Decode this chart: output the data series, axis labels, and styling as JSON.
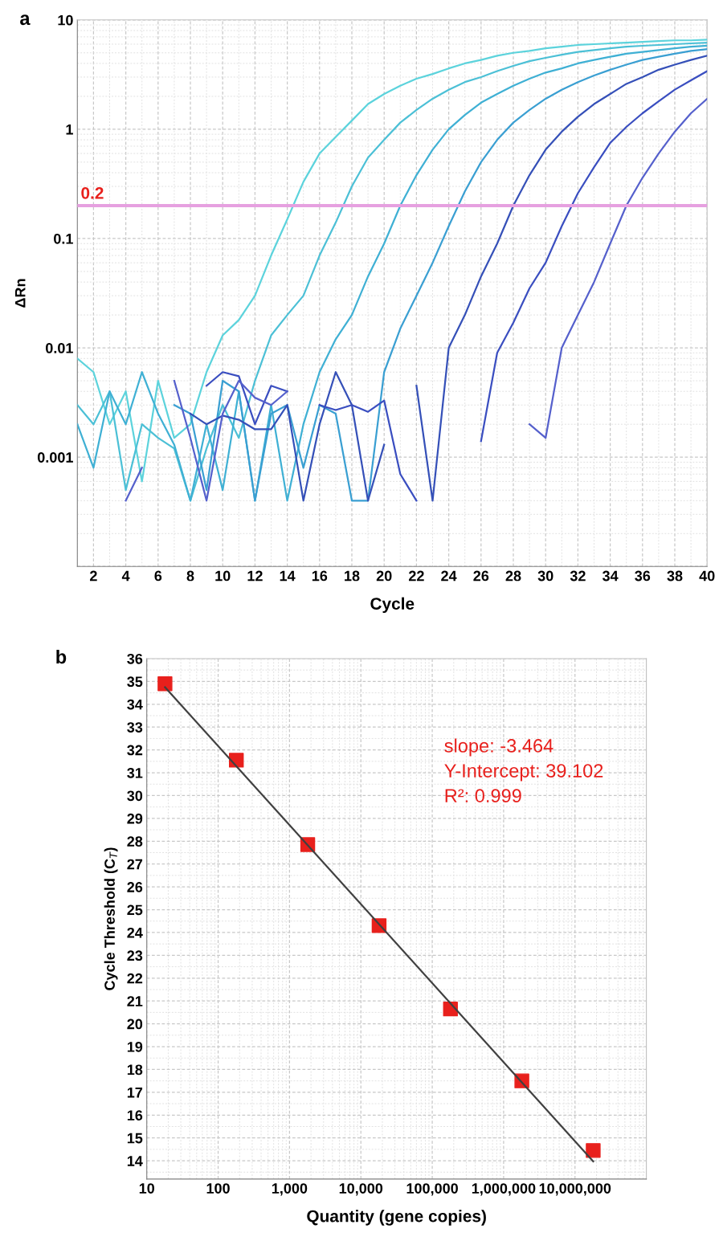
{
  "chart_data": [
    {
      "type": "line",
      "title": "a",
      "xlabel": "Cycle",
      "ylabel": "ΔRn",
      "log": "y",
      "grid": true,
      "legend": false,
      "marker": "none",
      "line_style": "solid",
      "x": [
        1,
        2,
        3,
        4,
        5,
        6,
        7,
        8,
        9,
        10,
        11,
        12,
        13,
        14,
        15,
        16,
        17,
        18,
        19,
        20,
        21,
        22,
        23,
        24,
        25,
        26,
        27,
        28,
        29,
        30,
        31,
        32,
        33,
        34,
        35,
        36,
        37,
        38,
        39,
        40
      ],
      "xlim": [
        1,
        40
      ],
      "xticks": [
        2,
        4,
        6,
        8,
        10,
        12,
        14,
        16,
        18,
        20,
        22,
        24,
        26,
        28,
        30,
        32,
        34,
        36,
        38,
        40
      ],
      "ylim": [
        0.0001,
        10
      ],
      "yticks": [
        {
          "value": 0.0001,
          "label": null
        },
        0.001,
        0.01,
        0.1,
        1,
        10
      ],
      "ref_lines": [
        {
          "axis": "y",
          "value": 0.2,
          "label": "0.2",
          "color": "#e6a0e0"
        }
      ],
      "series": [
        {
          "color": "#5cd3dc",
          "values": [
            0.008,
            0.006,
            0.002,
            0.004,
            0.0006,
            0.005,
            0.0015,
            0.002,
            0.006,
            0.013,
            0.018,
            0.03,
            0.07,
            0.15,
            0.33,
            0.6,
            0.85,
            1.2,
            1.7,
            2.1,
            2.5,
            2.9,
            3.2,
            3.6,
            4.0,
            4.3,
            4.7,
            5.0,
            5.2,
            5.5,
            5.7,
            5.9,
            6.0,
            6.1,
            6.2,
            6.3,
            6.4,
            6.5,
            6.5,
            6.6
          ]
        },
        {
          "color": "#4cc0d6",
          "values": [
            0.003,
            0.002,
            0.004,
            0.0005,
            0.002,
            0.0015,
            0.0012,
            0.0004,
            0.0012,
            0.003,
            0.0015,
            0.005,
            0.013,
            0.02,
            0.03,
            0.07,
            0.14,
            0.3,
            0.55,
            0.8,
            1.15,
            1.5,
            1.9,
            2.3,
            2.7,
            3.0,
            3.4,
            3.8,
            4.2,
            4.5,
            4.8,
            5.1,
            5.3,
            5.5,
            5.7,
            5.8,
            5.9,
            6.0,
            6.1,
            6.2
          ]
        },
        {
          "color": "#3fb0d4",
          "values": [
            0.002,
            0.0008,
            0.004,
            0.002,
            0.006,
            0.0025,
            0.0013,
            0.0004,
            0.002,
            0.0005,
            0.004,
            0.0004,
            0.003,
            0.0004,
            0.002,
            0.006,
            0.012,
            0.02,
            0.045,
            0.09,
            0.2,
            0.38,
            0.65,
            1.0,
            1.35,
            1.75,
            2.1,
            2.5,
            2.9,
            3.3,
            3.6,
            4.0,
            4.3,
            4.6,
            4.9,
            5.1,
            5.3,
            5.5,
            5.7,
            5.8
          ]
        },
        {
          "color": "#3a9fd2",
          "values": [
            null,
            null,
            null,
            null,
            null,
            null,
            0.003,
            0.0025,
            0.0005,
            0.005,
            0.004,
            0.0004,
            0.0025,
            0.003,
            0.0008,
            0.003,
            0.0025,
            0.0004,
            0.0004,
            0.006,
            0.015,
            0.03,
            0.06,
            0.13,
            0.27,
            0.5,
            0.8,
            1.15,
            1.5,
            1.9,
            2.3,
            2.7,
            3.1,
            3.5,
            3.9,
            4.3,
            4.6,
            4.9,
            5.2,
            5.4
          ]
        },
        {
          "color": "#3550b8",
          "values": [
            null,
            null,
            null,
            null,
            null,
            null,
            null,
            0.0025,
            0.002,
            0.0024,
            0.0022,
            0.0018,
            0.0018,
            0.003,
            0.0004,
            0.002,
            0.006,
            0.003,
            0.0004,
            0.0013,
            null,
            0.0045,
            0.0004,
            0.01,
            0.02,
            0.045,
            0.09,
            0.2,
            0.38,
            0.65,
            0.95,
            1.3,
            1.7,
            2.1,
            2.6,
            3.0,
            3.5,
            3.9,
            4.3,
            4.7
          ]
        },
        {
          "color": "#3a4ec0",
          "values": [
            null,
            null,
            null,
            null,
            null,
            null,
            null,
            null,
            0.0045,
            0.006,
            0.0055,
            0.002,
            0.0045,
            0.004,
            null,
            0.003,
            0.0027,
            0.003,
            0.0026,
            0.0033,
            0.0007,
            0.0004,
            null,
            null,
            null,
            0.0014,
            0.009,
            0.017,
            0.035,
            0.06,
            0.13,
            0.26,
            0.45,
            0.75,
            1.05,
            1.4,
            1.8,
            2.3,
            2.8,
            3.4
          ]
        },
        {
          "color": "#5560cc",
          "values": [
            null,
            null,
            null,
            0.0004,
            0.0008,
            null,
            0.005,
            0.0015,
            0.0004,
            0.0025,
            0.005,
            0.0035,
            0.003,
            0.004,
            null,
            null,
            null,
            null,
            null,
            null,
            null,
            null,
            null,
            null,
            null,
            null,
            null,
            null,
            0.002,
            0.0015,
            0.01,
            0.02,
            0.04,
            0.09,
            0.2,
            0.36,
            0.6,
            0.95,
            1.4,
            1.9
          ]
        }
      ]
    },
    {
      "type": "scatter",
      "title": "b",
      "xlabel": "Quantity (gene copies)",
      "ylabel": "Cycle Threshold (C$_{T}$)",
      "log": "x",
      "grid": true,
      "legend": false,
      "xlim": [
        10,
        100000000
      ],
      "xticks": [
        {
          "value": 10,
          "label": "10"
        },
        {
          "value": 100,
          "label": "100"
        },
        {
          "value": 1000,
          "label": "1,000"
        },
        {
          "value": 10000,
          "label": "10,000"
        },
        {
          "value": 100000,
          "label": "100,000"
        },
        {
          "value": 1000000,
          "label": "1,000,000"
        },
        {
          "value": 10000000,
          "label": "10,000,000"
        },
        {
          "value": 100000000,
          "label": null
        }
      ],
      "ylim": [
        13.2,
        36
      ],
      "yticks": [
        14,
        15,
        16,
        17,
        18,
        19,
        20,
        21,
        22,
        23,
        24,
        25,
        26,
        27,
        28,
        29,
        30,
        31,
        32,
        33,
        34,
        35,
        36
      ],
      "annotations": [
        "slope: -3.464",
        "Y-Intercept: 39.102",
        "R²: 0.999"
      ],
      "series": [
        {
          "type": "scatter",
          "marker": "square",
          "color": "#e8201c",
          "x": [
            18,
            180,
            1800,
            18000,
            180000,
            1800000,
            18000000
          ],
          "values": [
            34.9,
            31.55,
            27.85,
            24.3,
            20.65,
            17.5,
            14.45
          ]
        },
        {
          "type": "line",
          "marker": "none",
          "color": "#404040",
          "x": [
            18,
            18000000
          ],
          "values": [
            34.75,
            13.97
          ]
        }
      ]
    }
  ]
}
